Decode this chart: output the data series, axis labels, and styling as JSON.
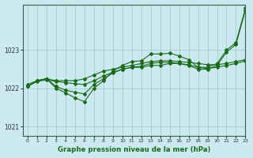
{
  "bg_color": "#cce8f0",
  "grid_color": "#99ccbb",
  "line_color": "#1a6b1a",
  "title": "Graphe pression niveau de la mer (hPa)",
  "xlim": [
    -0.5,
    23
  ],
  "ylim": [
    1020.75,
    1024.2
  ],
  "yticks": [
    1021,
    1022,
    1023
  ],
  "xticks": [
    0,
    1,
    2,
    3,
    4,
    5,
    6,
    7,
    8,
    9,
    10,
    11,
    12,
    13,
    14,
    15,
    16,
    17,
    18,
    19,
    20,
    21,
    22,
    23
  ],
  "series1": [
    1022.05,
    1022.2,
    1022.25,
    1022.05,
    1021.95,
    1021.9,
    1021.85,
    1022.1,
    1022.25,
    1022.4,
    1022.5,
    1022.55,
    1022.55,
    1022.6,
    1022.6,
    1022.65,
    1022.65,
    1022.6,
    1022.5,
    1022.5,
    1022.6,
    1022.95,
    1023.15,
    1024.05
  ],
  "series2": [
    1022.05,
    1022.2,
    1022.25,
    1022.2,
    1022.2,
    1022.2,
    1022.25,
    1022.35,
    1022.45,
    1022.5,
    1022.55,
    1022.6,
    1022.65,
    1022.7,
    1022.72,
    1022.72,
    1022.7,
    1022.68,
    1022.65,
    1022.62,
    1022.62,
    1022.65,
    1022.7,
    1022.75
  ],
  "series3": [
    1022.1,
    1022.2,
    1022.25,
    1022.0,
    1021.88,
    1021.75,
    1021.65,
    1022.0,
    1022.2,
    1022.45,
    1022.6,
    1022.7,
    1022.72,
    1022.9,
    1022.9,
    1022.92,
    1022.85,
    1022.75,
    1022.55,
    1022.55,
    1022.65,
    1023.0,
    1023.2,
    1024.1
  ],
  "series4": [
    1022.05,
    1022.18,
    1022.22,
    1022.18,
    1022.15,
    1022.12,
    1022.1,
    1022.2,
    1022.32,
    1022.42,
    1022.5,
    1022.55,
    1022.58,
    1022.65,
    1022.68,
    1022.68,
    1022.65,
    1022.62,
    1022.55,
    1022.52,
    1022.55,
    1022.6,
    1022.65,
    1022.72
  ]
}
